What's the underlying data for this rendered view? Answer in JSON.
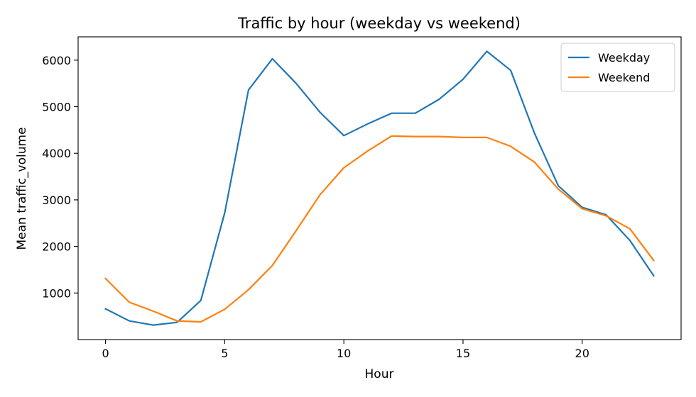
{
  "chart_data": {
    "type": "line",
    "title": "Traffic by hour (weekday vs weekend)",
    "xlabel": "Hour",
    "ylabel": "Mean traffic_volume",
    "xlim": [
      -1.15,
      24.15
    ],
    "ylim": [
      0,
      6500
    ],
    "xticks": [
      0,
      5,
      10,
      15,
      20
    ],
    "yticks": [
      1000,
      2000,
      3000,
      4000,
      5000,
      6000
    ],
    "grid": false,
    "legend_position": "top-right",
    "x": [
      0,
      1,
      2,
      3,
      4,
      5,
      6,
      7,
      8,
      9,
      10,
      11,
      12,
      13,
      14,
      15,
      16,
      17,
      18,
      19,
      20,
      21,
      22,
      23
    ],
    "series": [
      {
        "name": "Weekday",
        "color": "#1f77b4",
        "values": [
          660,
          400,
          310,
          370,
          840,
          2720,
          5360,
          6030,
          5500,
          4880,
          4380,
          4630,
          4860,
          4860,
          5160,
          5590,
          6190,
          5780,
          4430,
          3300,
          2840,
          2680,
          2130,
          1370
        ]
      },
      {
        "name": "Weekend",
        "color": "#ff7f0e",
        "values": [
          1310,
          800,
          610,
          400,
          380,
          650,
          1070,
          1590,
          2340,
          3110,
          3690,
          4050,
          4370,
          4360,
          4360,
          4340,
          4340,
          4150,
          3810,
          3230,
          2810,
          2660,
          2380,
          1700
        ]
      }
    ]
  }
}
